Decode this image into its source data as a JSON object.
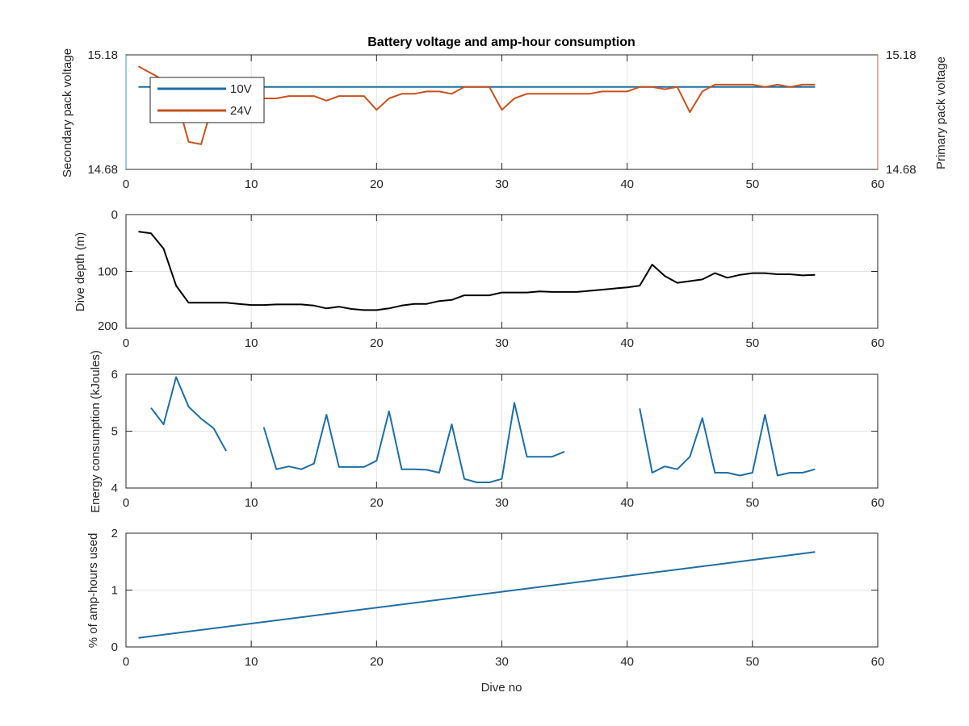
{
  "chart_data": [
    {
      "type": "line",
      "title": "Battery voltage and amp-hour consumption",
      "xlabel": "",
      "ylabel_left": "Secondary pack voltage",
      "ylabel_right": "Primary pack voltage",
      "xlim": [
        0,
        60
      ],
      "xticks": [
        "0",
        "10",
        "20",
        "30",
        "40",
        "50",
        "60"
      ],
      "ylim": [
        14.68,
        15.18
      ],
      "yticks_left": [
        "14.68",
        "15.18"
      ],
      "yticks_right": [
        "14.68",
        "15.18"
      ],
      "left_axis_color": "#3b8fc1",
      "right_axis_color": "#d45f2a",
      "grid": true,
      "legend_position": "top-left",
      "legend": [
        "10V",
        "24V"
      ],
      "series": [
        {
          "name": "10V",
          "axis": "left",
          "color": "#1f6ea3",
          "x": [
            1,
            55
          ],
          "y": [
            15.04,
            15.04
          ]
        },
        {
          "name": "24V",
          "axis": "right",
          "color": "#c8511e",
          "x": [
            1,
            2,
            3,
            4,
            5,
            6,
            7,
            8,
            9,
            10,
            11,
            12,
            13,
            14,
            15,
            16,
            17,
            18,
            19,
            20,
            21,
            22,
            23,
            24,
            25,
            26,
            27,
            28,
            29,
            30,
            31,
            32,
            33,
            34,
            35,
            36,
            37,
            38,
            39,
            40,
            41,
            42,
            43,
            44,
            45,
            46,
            47,
            48,
            49,
            50,
            51,
            52,
            53,
            54,
            55
          ],
          "y": [
            15.13,
            15.1,
            15.07,
            15.0,
            14.8,
            14.79,
            14.98,
            15.0,
            14.99,
            14.98,
            14.99,
            14.99,
            15.0,
            15.0,
            15.0,
            14.98,
            15.0,
            15.0,
            15.0,
            14.94,
            14.99,
            15.01,
            15.01,
            15.02,
            15.02,
            15.01,
            15.04,
            15.04,
            15.04,
            14.94,
            14.99,
            15.01,
            15.01,
            15.01,
            15.01,
            15.01,
            15.01,
            15.02,
            15.02,
            15.02,
            15.04,
            15.04,
            15.03,
            15.04,
            14.93,
            15.02,
            15.05,
            15.05,
            15.05,
            15.05,
            15.04,
            15.05,
            15.04,
            15.05,
            15.05
          ]
        }
      ]
    },
    {
      "type": "line",
      "title": "",
      "xlabel": "",
      "ylabel": "Dive depth (m)",
      "xlim": [
        0,
        60
      ],
      "xticks": [
        "0",
        "10",
        "20",
        "30",
        "40",
        "50",
        "60"
      ],
      "ylim": [
        0,
        200
      ],
      "y_reversed": true,
      "yticks": [
        "0",
        "100",
        "200"
      ],
      "grid": true,
      "series": [
        {
          "color": "#000000",
          "x": [
            1,
            2,
            3,
            4,
            5,
            6,
            7,
            8,
            9,
            10,
            11,
            12,
            13,
            14,
            15,
            16,
            17,
            18,
            19,
            20,
            21,
            22,
            23,
            24,
            25,
            26,
            27,
            28,
            29,
            30,
            31,
            32,
            33,
            34,
            35,
            36,
            37,
            38,
            39,
            40,
            41,
            42,
            43,
            44,
            45,
            46,
            47,
            48,
            49,
            50,
            51,
            52,
            53,
            54,
            55
          ],
          "y": [
            30,
            33,
            60,
            125,
            155,
            155,
            155,
            155,
            157,
            159,
            159,
            158,
            158,
            158,
            160,
            165,
            162,
            166,
            168,
            168,
            165,
            160,
            157,
            157,
            152,
            150,
            142,
            142,
            142,
            137,
            137,
            137,
            135,
            136,
            136,
            136,
            134,
            132,
            130,
            128,
            125,
            88,
            108,
            120,
            117,
            114,
            103,
            111,
            106,
            103,
            103,
            105,
            105,
            107,
            106
          ]
        }
      ]
    },
    {
      "type": "line",
      "title": "",
      "xlabel": "",
      "ylabel": "Energy consumption (kJoules)",
      "xlim": [
        0,
        60
      ],
      "xticks": [
        "0",
        "10",
        "20",
        "30",
        "40",
        "50",
        "60"
      ],
      "ylim": [
        4,
        6
      ],
      "yticks": [
        "4",
        "5",
        "6"
      ],
      "grid": true,
      "series": [
        {
          "color": "#1f6ea3",
          "x": [
            2,
            3,
            4,
            5,
            6,
            7,
            8,
            null,
            11,
            12,
            13,
            14,
            15,
            16,
            17,
            18,
            19,
            20,
            21,
            22,
            23,
            24,
            25,
            26,
            27,
            28,
            29,
            30,
            31,
            32,
            33,
            34,
            35,
            null,
            41,
            42,
            43,
            44,
            45,
            46,
            47,
            48,
            49,
            50,
            51,
            52,
            53,
            54,
            55
          ],
          "y": [
            5.41,
            5.12,
            5.95,
            5.43,
            5.22,
            5.05,
            4.65,
            null,
            5.07,
            4.33,
            4.38,
            4.33,
            4.43,
            5.29,
            4.37,
            4.37,
            4.37,
            4.48,
            5.35,
            4.33,
            4.33,
            4.32,
            4.27,
            5.12,
            4.16,
            4.1,
            4.1,
            4.16,
            5.5,
            4.55,
            4.55,
            4.55,
            4.64,
            null,
            5.4,
            4.27,
            4.38,
            4.33,
            4.55,
            5.23,
            4.27,
            4.27,
            4.22,
            4.27,
            5.29,
            4.22,
            4.27,
            4.27,
            4.33
          ]
        }
      ]
    },
    {
      "type": "line",
      "title": "",
      "xlabel": "Dive no",
      "ylabel": "% of amp-hours used",
      "xlim": [
        0,
        60
      ],
      "xticks": [
        "0",
        "10",
        "20",
        "30",
        "40",
        "50",
        "60"
      ],
      "ylim": [
        0,
        2
      ],
      "yticks": [
        "0",
        "1",
        "2"
      ],
      "grid": true,
      "series": [
        {
          "color": "#1f6ea3",
          "x": [
            1,
            55
          ],
          "y": [
            0.16,
            1.67
          ]
        }
      ]
    }
  ]
}
